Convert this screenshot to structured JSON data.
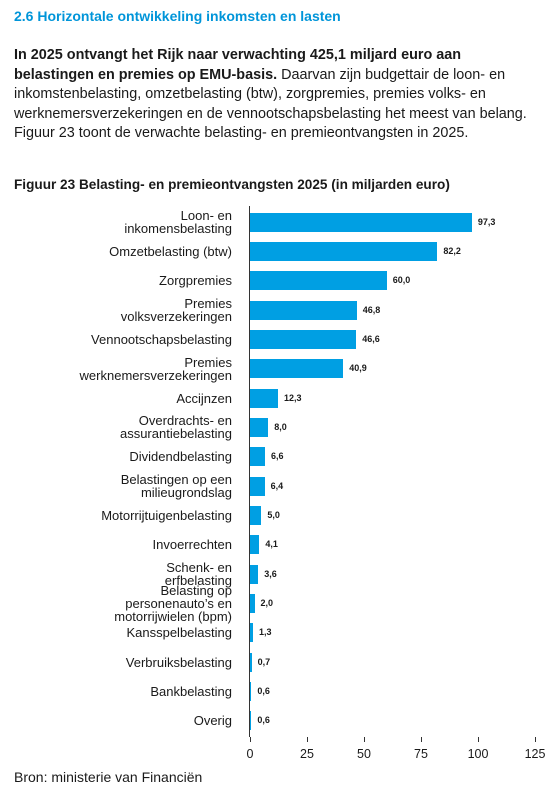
{
  "heading": "2.6 Horizontale ontwikkeling inkomsten en lasten",
  "paragraph": {
    "bold": "In 2025 ontvangt het Rijk naar verwachting 425,1 miljard euro aan belastingen en premies op EMU-basis.",
    "text": "Daarvan zijn budgettair de loon- en inkomstenbelasting, omzetbelasting (btw), zorgpremies, premies volks- en werknemersverzekeringen en de vennootschapsbelasting het meest van belang. Figuur 23 toont de verwachte belasting- en premieontvangsten in 2025."
  },
  "source": "Bron: ministerie van Financiën",
  "chart_data": {
    "type": "bar",
    "orientation": "horizontal",
    "title": "Figuur 23 Belasting- en premieontvangsten 2025 (in miljarden euro)",
    "categories": [
      "Loon- en\ninkomensbelasting",
      "Omzetbelasting (btw)",
      "Zorgpremies",
      "Premies\nvolksverzekeringen",
      "Vennootschapsbelasting",
      "Premies\nwerknemersverzekeringen",
      "Accijnzen",
      "Overdrachts- en\nassurantiebelasting",
      "Dividendbelasting",
      "Belastingen op een\nmilieugrondslag",
      "Motorrijtuigenbelasting",
      "Invoerrechten",
      "Schenk- en\nerfbelasting",
      "Belasting op\npersonenauto’s en\nmotorrijwielen (bpm)",
      "Kansspelbelasting",
      "Verbruiksbelasting",
      "Bankbelasting",
      "Overig"
    ],
    "values": [
      97.3,
      82.2,
      60.0,
      46.8,
      46.6,
      40.9,
      12.3,
      8.0,
      6.6,
      6.4,
      5.0,
      4.1,
      3.6,
      2.0,
      1.3,
      0.7,
      0.6,
      0.6
    ],
    "value_labels": [
      "97,3",
      "82,2",
      "60,0",
      "46,8",
      "46,6",
      "40,9",
      "12,3",
      "8,0",
      "6,6",
      "6,4",
      "5,0",
      "4,1",
      "3,6",
      "2,0",
      "1,3",
      "0,7",
      "0,6",
      "0,6"
    ],
    "color": "#009fe3",
    "xlim": [
      0,
      125
    ],
    "xticks": [
      0,
      25,
      50,
      75,
      100,
      125
    ]
  }
}
